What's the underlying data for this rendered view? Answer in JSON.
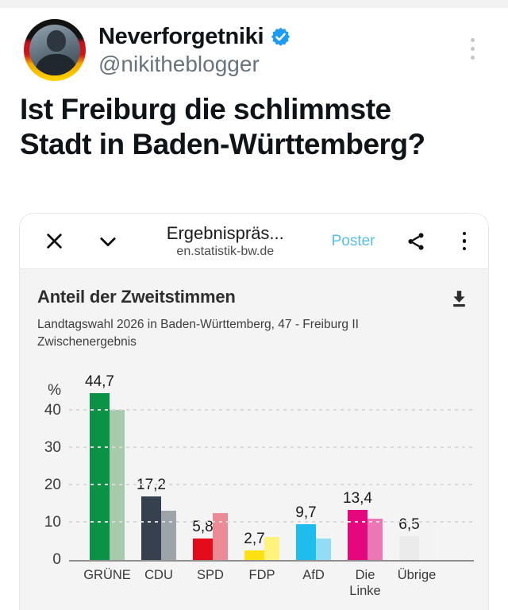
{
  "tweet": {
    "author": "Neverforgetniki",
    "handle": "@nikitheblogger",
    "verified": true,
    "verified_color": "#1d9bf0",
    "text_line1": "Ist Freiburg die schlimmste",
    "text_line2": "Stadt in Baden-Württemberg?"
  },
  "viewer": {
    "title": "Ergebnispräs...",
    "url": "en.statistik-bw.de",
    "poster_label": "Poster",
    "accent_color": "#58bfe8"
  },
  "chart_header": {
    "title": "Anteil der Zweitstimmen",
    "subtitle_line1": "Landtagswahl 2026 in Baden-Württemberg, 47 - Freiburg II",
    "subtitle_line2": "Zwischenergebnis"
  },
  "chart_data": {
    "type": "bar",
    "title": "Anteil der Zweitstimmen",
    "unit": "%",
    "ylim": [
      0,
      47
    ],
    "yticks": [
      0,
      10,
      20,
      30,
      40
    ],
    "grid": "dashed horizontal gridlines at 10/20/30/40",
    "legend": "none visible",
    "categories": [
      "GRÜNE",
      "CDU",
      "SPD",
      "FDP",
      "AfD",
      "Die Linke",
      "Übrige"
    ],
    "series": [
      {
        "name": "main",
        "values": [
          44.7,
          17.2,
          5.8,
          2.7,
          9.7,
          13.4,
          6.5
        ],
        "labels": [
          "44,7",
          "17,2",
          "5,8",
          "2,7",
          "9,7",
          "13,4",
          "6,5"
        ],
        "colors": [
          "#0c9247",
          "#36414f",
          "#e30c1a",
          "#ffe112",
          "#1fbcee",
          "#e5077d",
          "#ebebeb"
        ]
      },
      {
        "name": "comparison",
        "values": [
          40.2,
          13.2,
          12.7,
          6.2,
          5.8,
          11.2,
          10.5
        ],
        "labels": [
          "",
          "",
          "",
          "",
          "",
          "",
          ""
        ],
        "colors": [
          "#a6cbab",
          "#9ca3a9",
          "#ec8b95",
          "#fff27d",
          "#93dcf5",
          "#ec77b5",
          "#f3f3f3"
        ]
      }
    ]
  }
}
